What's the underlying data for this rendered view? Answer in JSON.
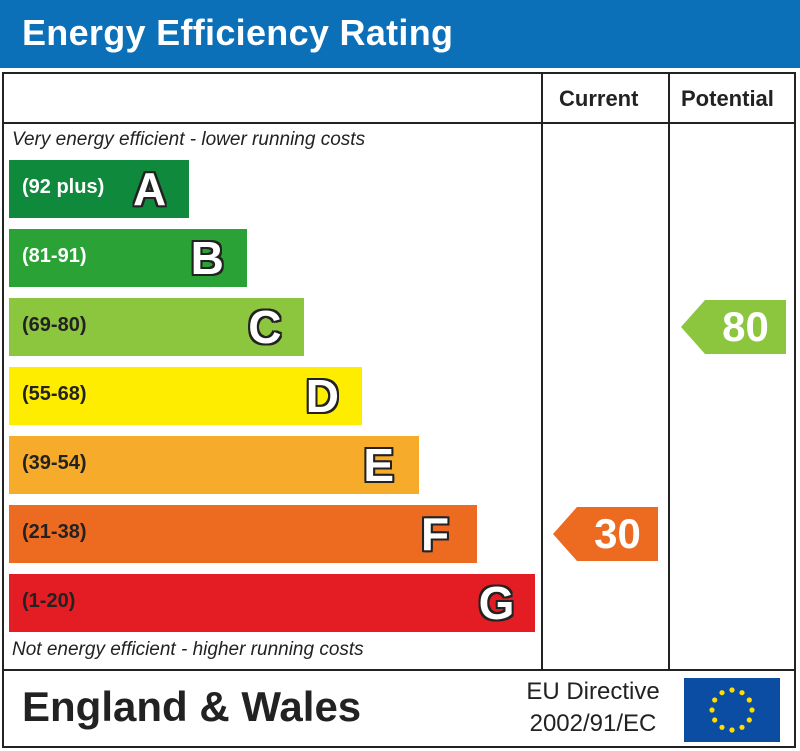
{
  "header": {
    "title": "Energy Efficiency Rating"
  },
  "columns": {
    "current": "Current",
    "potential": "Potential"
  },
  "captions": {
    "top": "Very energy efficient - lower running costs",
    "bottom": "Not energy efficient - higher running costs"
  },
  "chart_data": {
    "type": "bar",
    "title": "Energy Efficiency Rating",
    "bands": [
      {
        "letter": "A",
        "range": "(92 plus)",
        "color": "#0f8a3c",
        "range_color": "#ffffff"
      },
      {
        "letter": "B",
        "range": "(81-91)",
        "color": "#2aa235",
        "range_color": "#ffffff"
      },
      {
        "letter": "C",
        "range": "(69-80)",
        "color": "#8cc63f",
        "range_color": "#222222"
      },
      {
        "letter": "D",
        "range": "(55-68)",
        "color": "#ffed00",
        "range_color": "#222222"
      },
      {
        "letter": "E",
        "range": "(39-54)",
        "color": "#f6ab2b",
        "range_color": "#222222"
      },
      {
        "letter": "F",
        "range": "(21-38)",
        "color": "#ed6b21",
        "range_color": "#222222"
      },
      {
        "letter": "G",
        "range": "(1-20)",
        "color": "#e31d23",
        "range_color": "#222222"
      }
    ],
    "ratings": [
      {
        "name": "Current",
        "value": 30,
        "band": "F",
        "color": "#ed6b21"
      },
      {
        "name": "Potential",
        "value": 80,
        "band": "C",
        "color": "#8cc63f"
      }
    ]
  },
  "footer": {
    "region": "England & Wales",
    "directive_line1": "EU Directive",
    "directive_line2": "2002/91/EC"
  },
  "icons": {
    "flag": "eu-flag-icon"
  }
}
